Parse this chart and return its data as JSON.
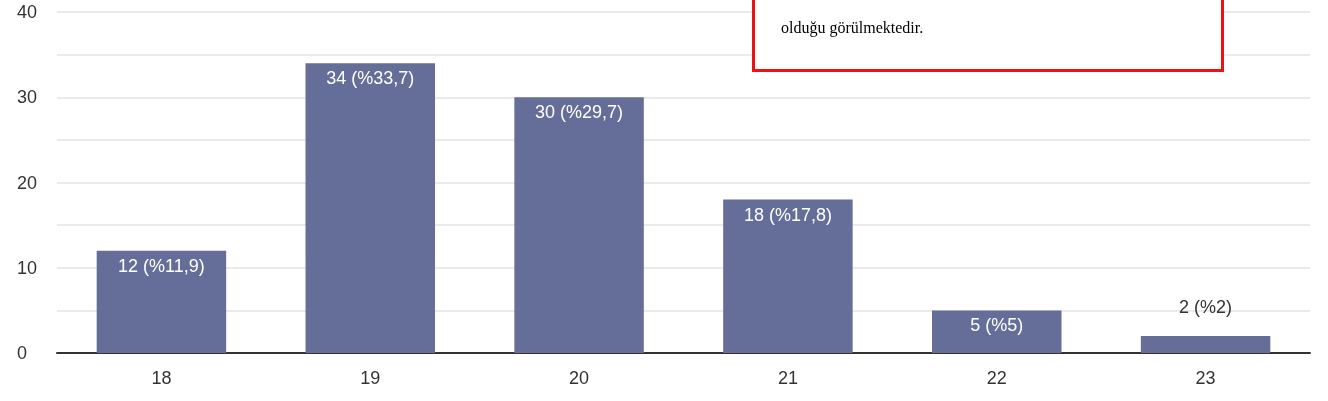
{
  "chart_data": {
    "type": "bar",
    "categories": [
      "18",
      "19",
      "20",
      "21",
      "22",
      "23"
    ],
    "values": [
      12,
      34,
      30,
      18,
      5,
      2
    ],
    "color": "#646e99",
    "value_labels": [
      "12 (%11,9)",
      "34 (%33,7)",
      "30 (%29,7)",
      "18 (%17,8)",
      "5 (%5)",
      "2 (%2)"
    ],
    "ylim": [
      0,
      40
    ],
    "yticks": [
      0,
      {
        "value": 5,
        "label": null
      },
      10,
      {
        "value": 15,
        "label": null
      },
      20,
      {
        "value": 25,
        "label": null
      },
      30,
      {
        "value": 35,
        "label": null
      },
      40
    ],
    "grid": "y",
    "annotations": [
      "olduğu görülmektedir."
    ]
  }
}
